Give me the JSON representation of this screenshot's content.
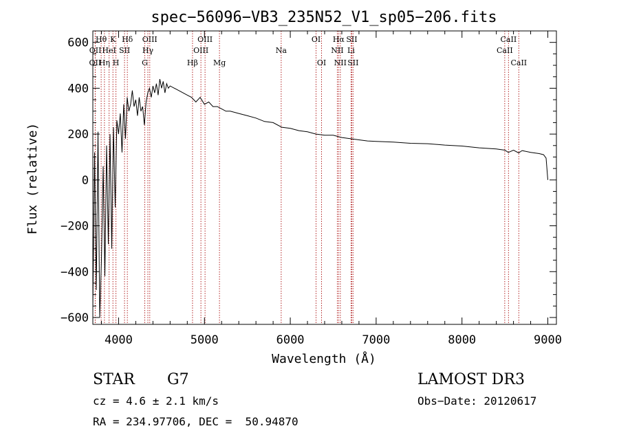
{
  "chart_data": {
    "type": "line",
    "title": "spec−56096−VB3_235N52_V1_sp05−206.fits",
    "xlabel": "Wavelength (Å)",
    "ylabel": "Flux (relative)",
    "xlim": [
      3700,
      9100
    ],
    "ylim": [
      -630,
      650
    ],
    "xticks": [
      4000,
      5000,
      6000,
      7000,
      8000,
      9000
    ],
    "xtick_labels": [
      "4000",
      "5000",
      "6000",
      "7000",
      "8000",
      "9000"
    ],
    "yticks": [
      -600,
      -400,
      -200,
      0,
      200,
      400,
      600
    ],
    "ytick_labels": [
      "−600",
      "−400",
      "−200",
      "0",
      "200",
      "400",
      "600"
    ],
    "grid": false,
    "series": [
      {
        "name": "flux",
        "x": [
          3700,
          3720,
          3740,
          3760,
          3780,
          3800,
          3820,
          3840,
          3860,
          3880,
          3900,
          3920,
          3940,
          3960,
          3980,
          4000,
          4020,
          4040,
          4060,
          4080,
          4100,
          4120,
          4140,
          4160,
          4180,
          4200,
          4220,
          4240,
          4260,
          4280,
          4300,
          4320,
          4340,
          4360,
          4380,
          4400,
          4420,
          4440,
          4460,
          4480,
          4500,
          4520,
          4540,
          4560,
          4580,
          4600,
          4650,
          4700,
          4750,
          4800,
          4850,
          4900,
          4950,
          5000,
          5050,
          5100,
          5150,
          5200,
          5250,
          5300,
          5400,
          5500,
          5600,
          5700,
          5800,
          5900,
          6000,
          6100,
          6200,
          6300,
          6400,
          6500,
          6600,
          6700,
          6800,
          6900,
          7000,
          7200,
          7400,
          7600,
          7800,
          8000,
          8200,
          8400,
          8500,
          8540,
          8600,
          8660,
          8700,
          8800,
          8900,
          8950,
          8980,
          9000
        ],
        "values": [
          -560,
          120,
          -480,
          210,
          -600,
          -350,
          60,
          -420,
          150,
          -280,
          200,
          -300,
          230,
          -120,
          260,
          200,
          290,
          120,
          330,
          180,
          360,
          300,
          330,
          390,
          320,
          350,
          280,
          360,
          300,
          320,
          240,
          340,
          380,
          400,
          360,
          410,
          380,
          420,
          370,
          440,
          400,
          430,
          380,
          420,
          400,
          410,
          400,
          390,
          380,
          370,
          360,
          340,
          360,
          330,
          340,
          320,
          320,
          310,
          300,
          300,
          290,
          280,
          270,
          255,
          250,
          230,
          225,
          215,
          210,
          200,
          195,
          195,
          185,
          180,
          175,
          170,
          168,
          165,
          160,
          158,
          152,
          148,
          140,
          135,
          130,
          120,
          130,
          118,
          128,
          120,
          115,
          110,
          95,
          0
        ]
      }
    ],
    "lines": [
      {
        "label": "OII",
        "wave": 3727,
        "row": 2
      },
      {
        "label": "OII",
        "wave": 3729,
        "row": 1
      },
      {
        "label": "Hθ",
        "wave": 3797,
        "row": 0
      },
      {
        "label": "Hη",
        "wave": 3835,
        "row": 2
      },
      {
        "label": "HeI",
        "wave": 3889,
        "row": 1
      },
      {
        "label": "K",
        "wave": 3934,
        "row": 0
      },
      {
        "label": "H",
        "wave": 3969,
        "row": 2
      },
      {
        "label": "SII",
        "wave": 4069,
        "row": 1
      },
      {
        "label": "Hδ",
        "wave": 4102,
        "row": 0
      },
      {
        "label": "G",
        "wave": 4305,
        "row": 2
      },
      {
        "label": "Hγ",
        "wave": 4341,
        "row": 1
      },
      {
        "label": "OIII",
        "wave": 4363,
        "row": 0
      },
      {
        "label": "Hβ",
        "wave": 4861,
        "row": 2
      },
      {
        "label": "OIII",
        "wave": 4959,
        "row": 1
      },
      {
        "label": "OIII",
        "wave": 5007,
        "row": 0
      },
      {
        "label": "Mg",
        "wave": 5175,
        "row": 2
      },
      {
        "label": "Na",
        "wave": 5894,
        "row": 1
      },
      {
        "label": "OI",
        "wave": 6300,
        "row": 0
      },
      {
        "label": "OI",
        "wave": 6364,
        "row": 2
      },
      {
        "label": "NII",
        "wave": 6548,
        "row": 1
      },
      {
        "label": "Hα",
        "wave": 6563,
        "row": 0
      },
      {
        "label": "NII",
        "wave": 6583,
        "row": 2
      },
      {
        "label": "SII",
        "wave": 6716,
        "row": 0
      },
      {
        "label": "Li",
        "wave": 6708,
        "row": 1
      },
      {
        "label": "SII",
        "wave": 6731,
        "row": 2
      },
      {
        "label": "CaII",
        "wave": 8498,
        "row": 1
      },
      {
        "label": "CaII",
        "wave": 8542,
        "row": 0
      },
      {
        "label": "CaII",
        "wave": 8662,
        "row": 2
      }
    ]
  },
  "info": {
    "object_type": "STAR",
    "subclass": "G7",
    "survey": "LAMOST DR3",
    "redshift": "cz = 4.6 ± 2.1 km/s",
    "obs_date": "Obs−Date: 20120617",
    "coords": "RA = 234.97706, DEC =  50.94870"
  },
  "colors": {
    "spectrum": "#000000",
    "line_markers": "#b22222",
    "axes": "#000000"
  }
}
